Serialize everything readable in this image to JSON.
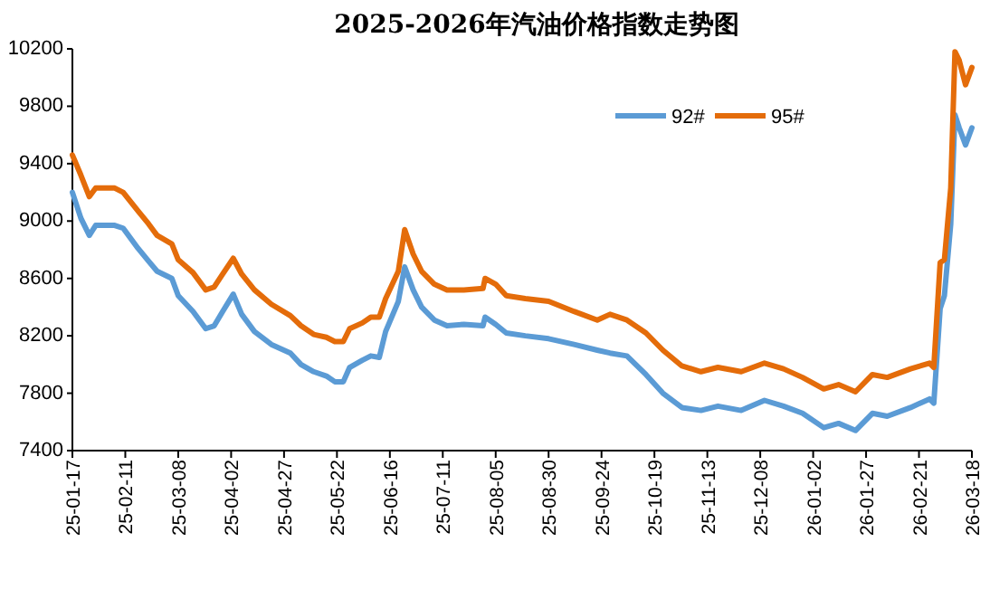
{
  "chart_data": {
    "type": "line",
    "title": "2025-2026年汽油价格指数走势图",
    "x": [
      "2025-01-17",
      "2025-01-21",
      "2025-01-25",
      "2025-01-28",
      "2025-02-06",
      "2025-02-10",
      "2025-02-17",
      "2025-02-22",
      "2025-02-26",
      "2025-03-05",
      "2025-03-08",
      "2025-03-15",
      "2025-03-21",
      "2025-03-25",
      "2025-03-29",
      "2025-04-03",
      "2025-04-07",
      "2025-04-13",
      "2025-04-21",
      "2025-04-30",
      "2025-05-05",
      "2025-05-11",
      "2025-05-17",
      "2025-05-21",
      "2025-05-25",
      "2025-05-28",
      "2025-06-03",
      "2025-06-07",
      "2025-06-11",
      "2025-06-14",
      "2025-06-20",
      "2025-06-23",
      "2025-06-27",
      "2025-07-01",
      "2025-07-07",
      "2025-07-13",
      "2025-07-21",
      "2025-07-30",
      "2025-07-31",
      "2025-08-05",
      "2025-08-10",
      "2025-08-19",
      "2025-08-30",
      "2025-09-11",
      "2025-09-22",
      "2025-09-28",
      "2025-10-06",
      "2025-10-15",
      "2025-10-23",
      "2025-11-01",
      "2025-11-10",
      "2025-11-18",
      "2025-11-29",
      "2025-12-10",
      "2025-12-19",
      "2025-12-28",
      "2026-01-07",
      "2026-01-14",
      "2026-01-22",
      "2026-01-30",
      "2026-02-06",
      "2026-02-17",
      "2026-02-26",
      "2026-02-28",
      "2026-03-03",
      "2026-03-05",
      "2026-03-08",
      "2026-03-10",
      "2026-03-12",
      "2026-03-15",
      "2026-03-18"
    ],
    "series": [
      {
        "name": "92#",
        "color": "#5b9bd5",
        "values": [
          9200,
          9020,
          8900,
          8970,
          8970,
          8950,
          8810,
          8720,
          8650,
          8600,
          8480,
          8370,
          8250,
          8270,
          8370,
          8490,
          8350,
          8230,
          8140,
          8080,
          8000,
          7950,
          7920,
          7880,
          7880,
          7980,
          8030,
          8060,
          8050,
          8230,
          8440,
          8680,
          8520,
          8400,
          8310,
          8270,
          8280,
          8270,
          8330,
          8280,
          8220,
          8200,
          8180,
          8140,
          8100,
          8080,
          8060,
          7930,
          7800,
          7700,
          7680,
          7710,
          7680,
          7750,
          7710,
          7660,
          7560,
          7590,
          7540,
          7660,
          7640,
          7700,
          7760,
          7730,
          8390,
          8480,
          8980,
          9740,
          9650,
          9530,
          9650
        ]
      },
      {
        "name": "95#",
        "color": "#e46c0a",
        "values": [
          9460,
          9320,
          9170,
          9230,
          9230,
          9200,
          9070,
          8980,
          8900,
          8840,
          8730,
          8640,
          8520,
          8540,
          8630,
          8740,
          8630,
          8520,
          8420,
          8340,
          8270,
          8210,
          8190,
          8160,
          8160,
          8250,
          8290,
          8330,
          8330,
          8460,
          8650,
          8940,
          8770,
          8650,
          8560,
          8520,
          8520,
          8530,
          8600,
          8560,
          8480,
          8460,
          8440,
          8370,
          8310,
          8350,
          8310,
          8220,
          8100,
          7990,
          7950,
          7980,
          7950,
          8010,
          7970,
          7910,
          7830,
          7860,
          7810,
          7930,
          7910,
          7970,
          8010,
          7980,
          8710,
          8730,
          9230,
          10180,
          10120,
          9950,
          10070
        ]
      }
    ],
    "xlim": [
      "2025-01-17",
      "2026-03-18"
    ],
    "xticks": [
      {
        "value": "2025-01-17",
        "label": "25-01-17"
      },
      {
        "value": "2025-02-11",
        "label": "25-02-11"
      },
      {
        "value": "2025-03-08",
        "label": "25-03-08"
      },
      {
        "value": "2025-04-02",
        "label": "25-04-02"
      },
      {
        "value": "2025-04-27",
        "label": "25-04-27"
      },
      {
        "value": "2025-05-22",
        "label": "25-05-22"
      },
      {
        "value": "2025-06-16",
        "label": "25-06-16"
      },
      {
        "value": "2025-07-11",
        "label": "25-07-11"
      },
      {
        "value": "2025-08-05",
        "label": "25-08-05"
      },
      {
        "value": "2025-08-30",
        "label": "25-08-30"
      },
      {
        "value": "2025-09-24",
        "label": "25-09-24"
      },
      {
        "value": "2025-10-19",
        "label": "25-10-19"
      },
      {
        "value": "2025-11-13",
        "label": "25-11-13"
      },
      {
        "value": "2025-12-08",
        "label": "25-12-08"
      },
      {
        "value": "2026-01-02",
        "label": "26-01-02"
      },
      {
        "value": "2026-01-27",
        "label": "26-01-27"
      },
      {
        "value": "2026-02-21",
        "label": "26-02-21"
      },
      {
        "value": "2026-03-18",
        "label": "26-03-18"
      }
    ],
    "ylim": [
      7400,
      10200
    ],
    "yticks": [
      7400,
      7800,
      8200,
      8600,
      9000,
      9400,
      9800,
      10200
    ],
    "legend": "top right",
    "grid": false,
    "marker": "none",
    "line_style": "solid"
  }
}
